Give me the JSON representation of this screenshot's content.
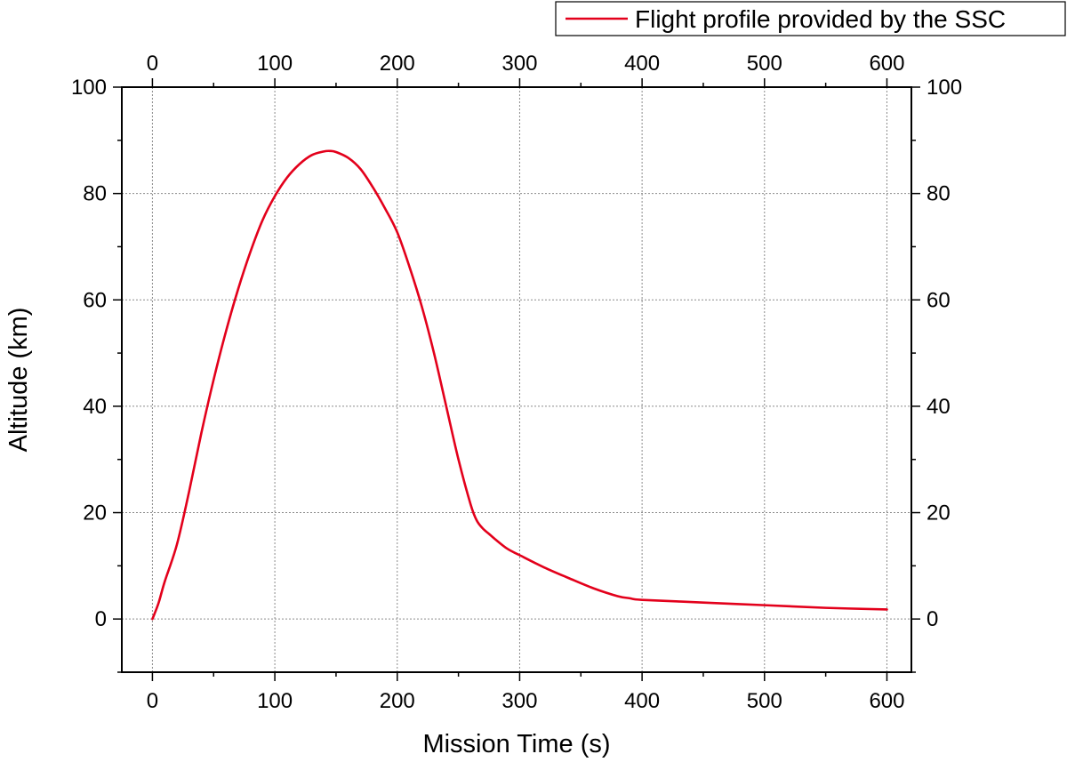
{
  "chart_data": {
    "type": "line",
    "xlabel": "Mission Time (s)",
    "ylabel": "Altitude (km)",
    "xlim": [
      -25,
      620
    ],
    "ylim": [
      -10,
      100
    ],
    "xticks": [
      0,
      100,
      200,
      300,
      400,
      500,
      600
    ],
    "yticks": [
      0,
      20,
      40,
      60,
      80,
      100
    ],
    "x_minor_step": 50,
    "y_minor_step": 10,
    "grid": true,
    "top_axis_labels": true,
    "right_axis_labels": true,
    "legend_position": "top-right",
    "series": [
      {
        "name": "Flight profile provided by the SSC",
        "color": "#e3001b",
        "x": [
          0,
          5,
          10,
          20,
          30,
          40,
          50,
          60,
          70,
          80,
          90,
          100,
          110,
          120,
          130,
          140,
          145,
          150,
          160,
          170,
          180,
          190,
          200,
          210,
          220,
          230,
          240,
          250,
          260,
          265,
          270,
          275,
          280,
          290,
          300,
          320,
          340,
          360,
          380,
          390,
          400,
          450,
          500,
          550,
          600
        ],
        "y": [
          0,
          3,
          7,
          14,
          24,
          35,
          45,
          54,
          62,
          69,
          75,
          79.5,
          83,
          85.5,
          87.2,
          87.9,
          88,
          87.8,
          86.7,
          84.6,
          81.2,
          77.2,
          72.7,
          66.2,
          58.8,
          50,
          40,
          30,
          21.5,
          18.5,
          17,
          16,
          15,
          13.2,
          12,
          9.7,
          7.7,
          5.8,
          4.3,
          3.9,
          3.6,
          3.1,
          2.6,
          2.1,
          1.8
        ]
      }
    ]
  }
}
